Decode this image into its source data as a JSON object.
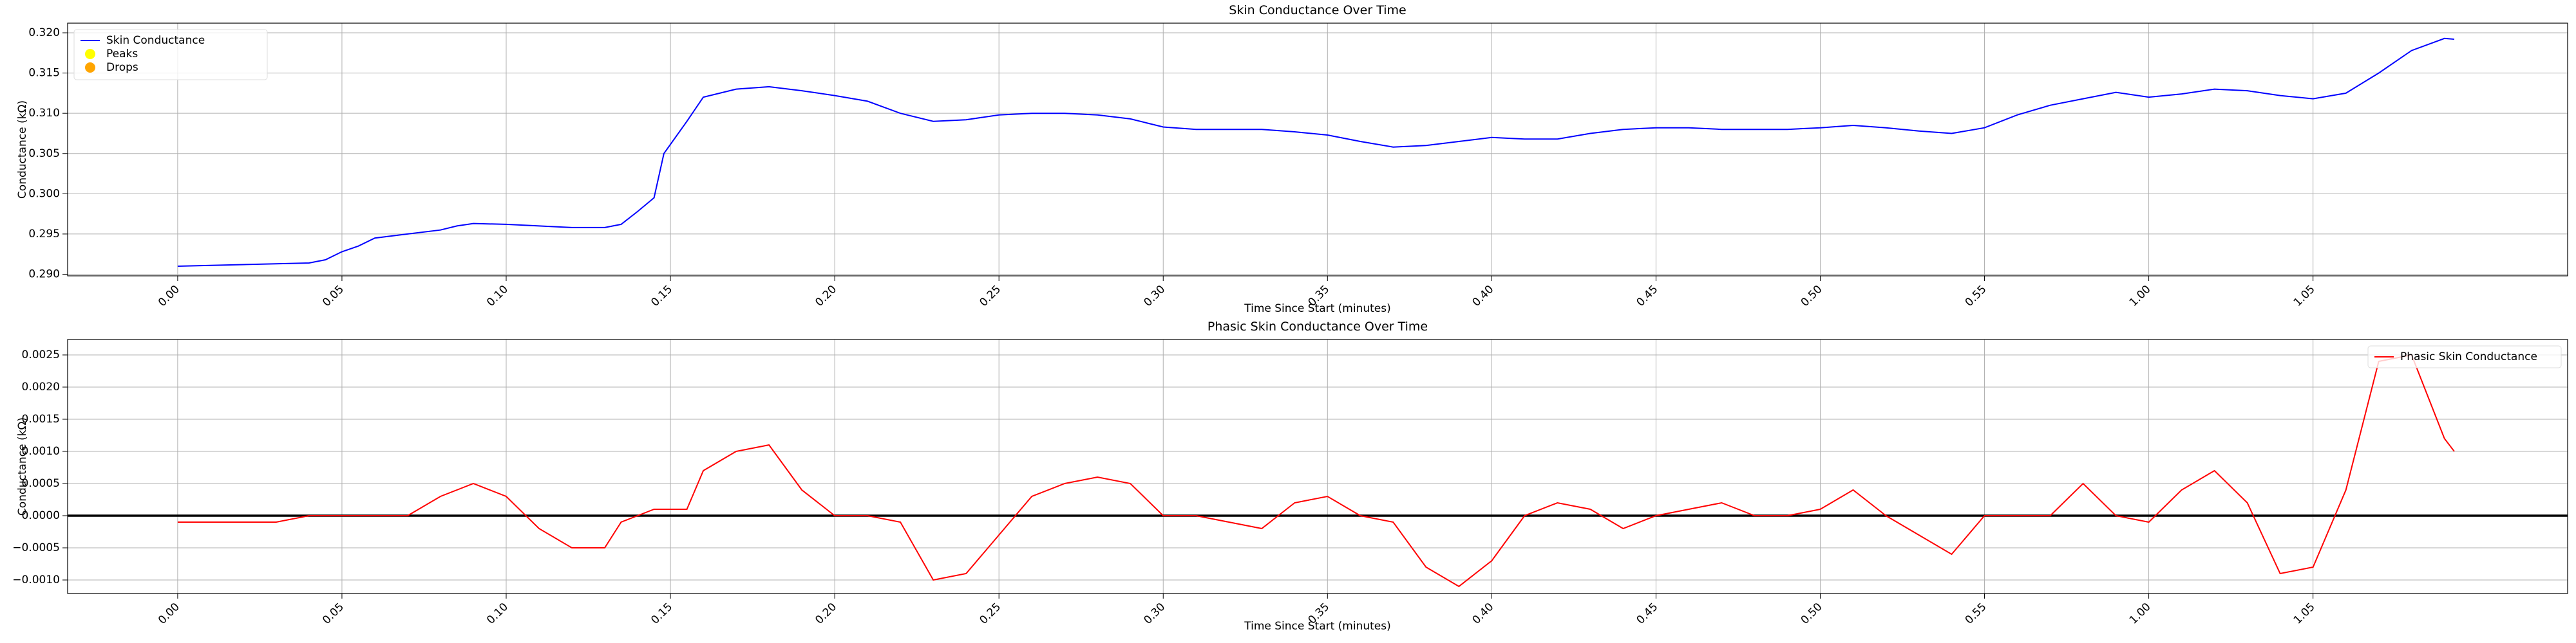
{
  "chart_data": [
    {
      "type": "line",
      "title": "Skin Conductance Over Time",
      "x_label": "Time Since Start (minutes)",
      "y_label": "Conductance (kΩ)",
      "x": [
        0,
        1,
        2,
        3,
        4,
        4.5,
        5,
        5.5,
        6,
        7,
        8,
        8.5,
        9,
        10,
        11,
        12,
        13,
        13.5,
        14,
        14.5,
        14.8,
        15.5,
        16,
        17,
        18,
        19,
        20,
        21,
        22,
        23,
        24,
        25,
        26,
        27,
        28,
        29,
        30,
        31,
        32,
        33,
        34,
        35,
        36,
        37,
        38,
        39,
        40,
        41,
        42,
        43,
        44,
        45,
        46,
        47,
        48,
        49,
        50,
        51,
        52,
        53,
        54,
        55,
        56,
        57,
        58,
        59,
        60,
        61,
        62,
        63,
        64,
        65,
        66,
        67,
        68,
        69,
        69.3
      ],
      "series": [
        {
          "name": "Skin Conductance",
          "color": "#0000ff",
          "values": [
            0.291,
            0.2911,
            0.2912,
            0.2913,
            0.2914,
            0.2918,
            0.2928,
            0.2935,
            0.2945,
            0.295,
            0.2955,
            0.296,
            0.2963,
            0.2962,
            0.296,
            0.2958,
            0.2958,
            0.2962,
            0.2978,
            0.2995,
            0.305,
            0.309,
            0.312,
            0.313,
            0.3133,
            0.3128,
            0.3122,
            0.3115,
            0.31,
            0.309,
            0.3092,
            0.3098,
            0.31,
            0.31,
            0.3098,
            0.3093,
            0.3083,
            0.308,
            0.308,
            0.308,
            0.3077,
            0.3073,
            0.3065,
            0.3058,
            0.306,
            0.3065,
            0.307,
            0.3068,
            0.3068,
            0.3075,
            0.308,
            0.3082,
            0.3082,
            0.308,
            0.308,
            0.308,
            0.3082,
            0.3085,
            0.3082,
            0.3078,
            0.3075,
            0.3082,
            0.3098,
            0.311,
            0.3118,
            0.3126,
            0.312,
            0.3124,
            0.313,
            0.3128,
            0.3122,
            0.3118,
            0.3125,
            0.315,
            0.3178,
            0.3193,
            0.3192
          ]
        }
      ],
      "markers": [
        {
          "name": "Peaks",
          "color": "#ffff00"
        },
        {
          "name": "Drops",
          "color": "#ffa500"
        }
      ],
      "legend": "upper left",
      "grid": true,
      "xlim": [
        -3.35,
        72.75
      ],
      "xticks": [
        {
          "value": 0,
          "label": "0.00"
        },
        {
          "value": 5,
          "label": "0.05"
        },
        {
          "value": 10,
          "label": "0.10"
        },
        {
          "value": 15,
          "label": "0.15"
        },
        {
          "value": 20,
          "label": "0.20"
        },
        {
          "value": 25,
          "label": "0.25"
        },
        {
          "value": 30,
          "label": "0.30"
        },
        {
          "value": 35,
          "label": "0.35"
        },
        {
          "value": 40,
          "label": "0.40"
        },
        {
          "value": 45,
          "label": "0.45"
        },
        {
          "value": 50,
          "label": "0.50"
        },
        {
          "value": 55,
          "label": "0.55"
        },
        {
          "value": 60,
          "label": "1.00"
        },
        {
          "value": 65,
          "label": "1.05"
        }
      ],
      "ylim": [
        0.2898,
        0.3212
      ],
      "yticks": [
        {
          "value": 0.29,
          "label": "0.290"
        },
        {
          "value": 0.295,
          "label": "0.295"
        },
        {
          "value": 0.3,
          "label": "0.300"
        },
        {
          "value": 0.305,
          "label": "0.305"
        },
        {
          "value": 0.31,
          "label": "0.310"
        },
        {
          "value": 0.315,
          "label": "0.315"
        },
        {
          "value": 0.32,
          "label": "0.320"
        }
      ]
    },
    {
      "type": "line",
      "title": "Phasic Skin Conductance Over Time",
      "x_label": "Time Since Start (minutes)",
      "y_label": "Conductance (kΩ)",
      "x": [
        0,
        1,
        2,
        3,
        4,
        4.5,
        5,
        5.5,
        6,
        7,
        8,
        8.5,
        9,
        10,
        11,
        12,
        13,
        13.5,
        14,
        14.5,
        14.8,
        15.5,
        16,
        17,
        18,
        19,
        20,
        21,
        22,
        23,
        24,
        25,
        26,
        27,
        28,
        29,
        30,
        31,
        32,
        33,
        34,
        35,
        36,
        37,
        38,
        39,
        40,
        41,
        42,
        43,
        44,
        45,
        46,
        47,
        48,
        49,
        50,
        51,
        52,
        53,
        54,
        55,
        56,
        57,
        58,
        59,
        60,
        61,
        62,
        63,
        64,
        65,
        66,
        67,
        68,
        69,
        69.3
      ],
      "series": [
        {
          "name": "Phasic Skin Conductance",
          "color": "#ff0000",
          "values": [
            -0.0001,
            -0.0001,
            -0.0001,
            -0.0001,
            0.0,
            0.0,
            0.0,
            0.0,
            0.0,
            0.0,
            0.0003,
            0.0004,
            0.0005,
            0.0003,
            -0.0002,
            -0.0005,
            -0.0005,
            -0.0001,
            0.0,
            0.0001,
            0.0001,
            0.0001,
            0.0007,
            0.001,
            0.0011,
            0.0004,
            0.0,
            0.0,
            -0.0001,
            -0.001,
            -0.0009,
            -0.0003,
            0.0003,
            0.0005,
            0.0006,
            0.0005,
            0.0,
            0.0,
            -0.0001,
            -0.0002,
            0.0002,
            0.0003,
            0.0,
            -0.0001,
            -0.0008,
            -0.0011,
            -0.0007,
            0.0,
            0.0002,
            0.0001,
            -0.0002,
            0.0,
            0.0001,
            0.0002,
            0.0,
            0.0,
            0.0001,
            0.0004,
            0.0,
            -0.0003,
            -0.0006,
            0.0,
            0.0,
            0.0,
            0.0005,
            0.0,
            -0.0001,
            0.0004,
            0.0007,
            0.0002,
            -0.0009,
            -0.0008,
            0.0004,
            0.0024,
            0.0025,
            0.0012,
            0.001
          ]
        }
      ],
      "hline": 0,
      "legend": "upper right",
      "grid": true,
      "xlim": [
        -3.35,
        72.75
      ],
      "xticks": [
        {
          "value": 0,
          "label": "0.00"
        },
        {
          "value": 5,
          "label": "0.05"
        },
        {
          "value": 10,
          "label": "0.10"
        },
        {
          "value": 15,
          "label": "0.15"
        },
        {
          "value": 20,
          "label": "0.20"
        },
        {
          "value": 25,
          "label": "0.25"
        },
        {
          "value": 30,
          "label": "0.30"
        },
        {
          "value": 35,
          "label": "0.35"
        },
        {
          "value": 40,
          "label": "0.40"
        },
        {
          "value": 45,
          "label": "0.45"
        },
        {
          "value": 50,
          "label": "0.50"
        },
        {
          "value": 55,
          "label": "0.55"
        },
        {
          "value": 60,
          "label": "1.00"
        },
        {
          "value": 65,
          "label": "1.05"
        }
      ],
      "ylim": [
        -0.00121,
        0.00274
      ],
      "yticks": [
        {
          "value": -0.001,
          "label": "−0.0010"
        },
        {
          "value": -0.0005,
          "label": "−0.0005"
        },
        {
          "value": 0,
          "label": "0.0000"
        },
        {
          "value": 0.0005,
          "label": "0.0005"
        },
        {
          "value": 0.001,
          "label": "0.0010"
        },
        {
          "value": 0.0015,
          "label": "0.0015"
        },
        {
          "value": 0.002,
          "label": "0.0020"
        },
        {
          "value": 0.0025,
          "label": "0.0025"
        }
      ]
    }
  ]
}
